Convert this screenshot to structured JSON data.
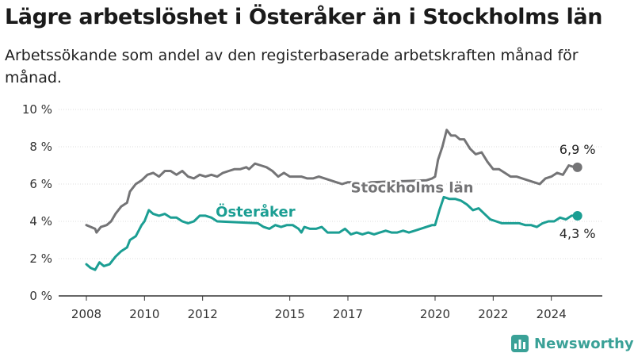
{
  "title": "Lägre arbetslöshet i Österåker än i Stockholms län",
  "subtitle": "Arbetssökande som andel av den registerbaserade arbetskraften månad för månad.",
  "brand": {
    "name": "Newsworthy"
  },
  "colors": {
    "stockholm": "#747476",
    "osteraker": "#1b9e93",
    "axis": "#333333",
    "grid": "#dddddd"
  },
  "chart_data": {
    "type": "line",
    "xlim": [
      2008.0,
      2025.4
    ],
    "ylim": [
      0,
      10
    ],
    "y_ticks": [
      0,
      2,
      4,
      6,
      8,
      10
    ],
    "y_tick_labels": [
      "0 %",
      "2 %",
      "4 %",
      "6 %",
      "8 %",
      "10 %"
    ],
    "x_ticks": [
      2008,
      2010,
      2012,
      2015,
      2017,
      2020,
      2022,
      2024
    ],
    "x_tick_labels": [
      "2008",
      "2010",
      "2012",
      "2015",
      "2017",
      "2020",
      "2022",
      "2024"
    ],
    "series": [
      {
        "name": "Stockholms län",
        "color": "#747476",
        "end_label": "6,9 %",
        "points": [
          [
            2008.0,
            3.8
          ],
          [
            2008.3,
            3.6
          ],
          [
            2008.35,
            3.4
          ],
          [
            2008.5,
            3.7
          ],
          [
            2008.7,
            3.8
          ],
          [
            2008.85,
            4.0
          ],
          [
            2009.0,
            4.4
          ],
          [
            2009.2,
            4.8
          ],
          [
            2009.4,
            5.0
          ],
          [
            2009.5,
            5.6
          ],
          [
            2009.7,
            6.0
          ],
          [
            2009.9,
            6.2
          ],
          [
            2010.1,
            6.5
          ],
          [
            2010.3,
            6.6
          ],
          [
            2010.5,
            6.4
          ],
          [
            2010.7,
            6.7
          ],
          [
            2010.9,
            6.7
          ],
          [
            2011.1,
            6.5
          ],
          [
            2011.3,
            6.7
          ],
          [
            2011.5,
            6.4
          ],
          [
            2011.7,
            6.3
          ],
          [
            2011.9,
            6.5
          ],
          [
            2012.1,
            6.4
          ],
          [
            2012.3,
            6.5
          ],
          [
            2012.5,
            6.4
          ],
          [
            2012.7,
            6.6
          ],
          [
            2012.9,
            6.7
          ],
          [
            2013.1,
            6.8
          ],
          [
            2013.3,
            6.8
          ],
          [
            2013.5,
            6.9
          ],
          [
            2013.6,
            6.8
          ],
          [
            2013.8,
            7.1
          ],
          [
            2014.0,
            7.0
          ],
          [
            2014.2,
            6.9
          ],
          [
            2014.4,
            6.7
          ],
          [
            2014.6,
            6.4
          ],
          [
            2014.8,
            6.6
          ],
          [
            2015.0,
            6.4
          ],
          [
            2015.2,
            6.4
          ],
          [
            2015.4,
            6.4
          ],
          [
            2015.6,
            6.3
          ],
          [
            2015.8,
            6.3
          ],
          [
            2016.0,
            6.4
          ],
          [
            2016.2,
            6.3
          ],
          [
            2016.4,
            6.2
          ],
          [
            2016.6,
            6.1
          ],
          [
            2016.8,
            6.0
          ],
          [
            2017.0,
            6.1
          ],
          [
            2017.2,
            6.1
          ],
          [
            2017.3,
            6.0
          ],
          [
            2017.5,
            6.1
          ],
          [
            2017.6,
            6.0
          ],
          [
            2017.8,
            6.1
          ],
          [
            2019.7,
            6.2
          ],
          [
            2019.9,
            6.3
          ],
          [
            2020.0,
            6.4
          ],
          [
            2020.1,
            7.3
          ],
          [
            2020.25,
            8.0
          ],
          [
            2020.4,
            8.9
          ],
          [
            2020.55,
            8.6
          ],
          [
            2020.7,
            8.6
          ],
          [
            2020.85,
            8.4
          ],
          [
            2021.0,
            8.4
          ],
          [
            2021.2,
            7.9
          ],
          [
            2021.4,
            7.6
          ],
          [
            2021.6,
            7.7
          ],
          [
            2021.8,
            7.2
          ],
          [
            2022.0,
            6.8
          ],
          [
            2022.2,
            6.8
          ],
          [
            2022.4,
            6.6
          ],
          [
            2022.6,
            6.4
          ],
          [
            2022.8,
            6.4
          ],
          [
            2023.0,
            6.3
          ],
          [
            2023.2,
            6.2
          ],
          [
            2023.4,
            6.1
          ],
          [
            2023.6,
            6.0
          ],
          [
            2023.8,
            6.3
          ],
          [
            2024.0,
            6.4
          ],
          [
            2024.2,
            6.6
          ],
          [
            2024.4,
            6.5
          ],
          [
            2024.6,
            7.0
          ],
          [
            2024.8,
            6.9
          ],
          [
            2024.9,
            6.9
          ]
        ]
      },
      {
        "name": "Österåker",
        "color": "#1b9e93",
        "end_label": "4,3 %",
        "points": [
          [
            2008.0,
            1.7
          ],
          [
            2008.15,
            1.5
          ],
          [
            2008.3,
            1.4
          ],
          [
            2008.45,
            1.8
          ],
          [
            2008.6,
            1.6
          ],
          [
            2008.8,
            1.7
          ],
          [
            2009.0,
            2.1
          ],
          [
            2009.2,
            2.4
          ],
          [
            2009.4,
            2.6
          ],
          [
            2009.5,
            3.0
          ],
          [
            2009.7,
            3.2
          ],
          [
            2009.9,
            3.8
          ],
          [
            2010.0,
            4.0
          ],
          [
            2010.15,
            4.6
          ],
          [
            2010.3,
            4.4
          ],
          [
            2010.5,
            4.3
          ],
          [
            2010.7,
            4.4
          ],
          [
            2010.9,
            4.2
          ],
          [
            2011.1,
            4.2
          ],
          [
            2011.3,
            4.0
          ],
          [
            2011.5,
            3.9
          ],
          [
            2011.7,
            4.0
          ],
          [
            2011.9,
            4.3
          ],
          [
            2012.1,
            4.3
          ],
          [
            2012.3,
            4.2
          ],
          [
            2012.5,
            4.0
          ],
          [
            2013.9,
            3.9
          ],
          [
            2014.1,
            3.7
          ],
          [
            2014.3,
            3.6
          ],
          [
            2014.5,
            3.8
          ],
          [
            2014.7,
            3.7
          ],
          [
            2014.9,
            3.8
          ],
          [
            2015.1,
            3.8
          ],
          [
            2015.3,
            3.6
          ],
          [
            2015.4,
            3.4
          ],
          [
            2015.5,
            3.7
          ],
          [
            2015.7,
            3.6
          ],
          [
            2015.9,
            3.6
          ],
          [
            2016.1,
            3.7
          ],
          [
            2016.3,
            3.4
          ],
          [
            2016.5,
            3.4
          ],
          [
            2016.7,
            3.4
          ],
          [
            2016.9,
            3.6
          ],
          [
            2017.1,
            3.3
          ],
          [
            2017.3,
            3.4
          ],
          [
            2017.5,
            3.3
          ],
          [
            2017.7,
            3.4
          ],
          [
            2017.9,
            3.3
          ],
          [
            2018.1,
            3.4
          ],
          [
            2018.3,
            3.5
          ],
          [
            2018.5,
            3.4
          ],
          [
            2018.7,
            3.4
          ],
          [
            2018.9,
            3.5
          ],
          [
            2019.1,
            3.4
          ],
          [
            2019.3,
            3.5
          ],
          [
            2019.5,
            3.6
          ],
          [
            2019.7,
            3.7
          ],
          [
            2019.9,
            3.8
          ],
          [
            2020.0,
            3.8
          ],
          [
            2020.15,
            4.6
          ],
          [
            2020.3,
            5.3
          ],
          [
            2020.5,
            5.2
          ],
          [
            2020.7,
            5.2
          ],
          [
            2020.9,
            5.1
          ],
          [
            2021.1,
            4.9
          ],
          [
            2021.3,
            4.6
          ],
          [
            2021.5,
            4.7
          ],
          [
            2021.7,
            4.4
          ],
          [
            2021.9,
            4.1
          ],
          [
            2022.1,
            4.0
          ],
          [
            2022.3,
            3.9
          ],
          [
            2022.5,
            3.9
          ],
          [
            2022.7,
            3.9
          ],
          [
            2022.9,
            3.9
          ],
          [
            2023.1,
            3.8
          ],
          [
            2023.3,
            3.8
          ],
          [
            2023.5,
            3.7
          ],
          [
            2023.7,
            3.9
          ],
          [
            2023.9,
            4.0
          ],
          [
            2024.1,
            4.0
          ],
          [
            2024.3,
            4.2
          ],
          [
            2024.5,
            4.1
          ],
          [
            2024.7,
            4.3
          ],
          [
            2024.9,
            4.3
          ]
        ]
      }
    ]
  }
}
